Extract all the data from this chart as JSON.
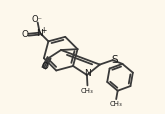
{
  "bg_color": "#fdf8ec",
  "bond_color": "#3a3a3a",
  "bond_width": 1.3,
  "font_color": "#1a1a1a",
  "figsize": [
    1.65,
    1.15
  ],
  "dpi": 100,
  "xlim": [
    0,
    8.5
  ],
  "ylim": [
    0,
    6
  ]
}
